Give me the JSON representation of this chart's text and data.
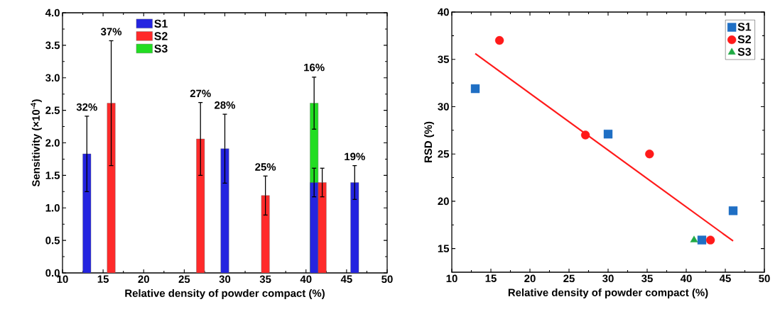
{
  "chart_data": [
    {
      "type": "bar",
      "xlabel": "Relative density of powder compact (%)",
      "ylabel": "Sensitivity (×10$^{-4}$)",
      "xlim": [
        10,
        50
      ],
      "xticks": [
        10,
        15,
        20,
        25,
        30,
        35,
        40,
        45,
        50
      ],
      "ylim": [
        0,
        4
      ],
      "yticks": [
        {
          "value": 0,
          "label": "0.0"
        },
        {
          "value": 0.5,
          "label": "0.5"
        },
        {
          "value": 1,
          "label": "1.0"
        },
        {
          "value": 1.5,
          "label": "1.5"
        },
        {
          "value": 2,
          "label": "2.0"
        },
        {
          "value": 2.5,
          "label": "2.5"
        },
        {
          "value": 3,
          "label": "3.0"
        },
        {
          "value": 3.5,
          "label": "3.5"
        },
        {
          "value": 4,
          "label": "4.0"
        }
      ],
      "legend": "top left",
      "series": [
        {
          "name": "S1",
          "color": "#2424e0",
          "x": [
            13,
            30,
            41,
            46
          ],
          "values": [
            1.83,
            1.91,
            1.39,
            1.39
          ],
          "errors": [
            0.58,
            0.53,
            0.22,
            0.26
          ]
        },
        {
          "name": "S2",
          "color": "#ff2a2a",
          "x": [
            16,
            27,
            35,
            42
          ],
          "values": [
            2.61,
            2.06,
            1.19,
            1.39
          ],
          "errors": [
            0.96,
            0.56,
            0.3,
            0.22
          ]
        },
        {
          "name": "S3",
          "color": "#22dd22",
          "x": [
            41
          ],
          "values": [
            2.61
          ],
          "errors": [
            0.4
          ]
        }
      ],
      "annotations": [
        {
          "text": "32%",
          "x": 13,
          "y": 2.41
        },
        {
          "text": "37%",
          "x": 16,
          "y": 3.57
        },
        {
          "text": "27%",
          "x": 27,
          "y": 2.62
        },
        {
          "text": "28%",
          "x": 30,
          "y": 2.44
        },
        {
          "text": "25%",
          "x": 35,
          "y": 1.49
        },
        {
          "text": "16%",
          "x": 41,
          "y": 3.02
        },
        {
          "text": "19%",
          "x": 46,
          "y": 1.65
        }
      ]
    },
    {
      "type": "scatter",
      "xlabel": "Relative density of powder compact (%)",
      "ylabel": "RSD (%)",
      "xlim": [
        10,
        50
      ],
      "xticks": [
        10,
        15,
        20,
        25,
        30,
        35,
        40,
        45,
        50
      ],
      "ylim": [
        12.5,
        40
      ],
      "yticks": [
        15,
        20,
        25,
        30,
        35,
        40
      ],
      "legend": "top right",
      "series": [
        {
          "name": "S1",
          "color": "#1f6fc4",
          "marker": "square",
          "x": [
            13,
            30,
            42,
            46
          ],
          "values": [
            31.9,
            27.1,
            15.9,
            19
          ]
        },
        {
          "name": "S2",
          "color": "#ff1a1a",
          "marker": "circle",
          "x": [
            16.1,
            27.1,
            35.3,
            43.1
          ],
          "values": [
            37,
            27,
            25,
            15.9
          ]
        },
        {
          "name": "S3",
          "color": "#1faa44",
          "marker": "triangle",
          "x": [
            41
          ],
          "values": [
            15.9
          ]
        },
        {
          "type": "line",
          "color": "#ff1a1a",
          "x": [
            13,
            46
          ],
          "values": [
            35.6,
            15.8
          ]
        }
      ]
    }
  ]
}
